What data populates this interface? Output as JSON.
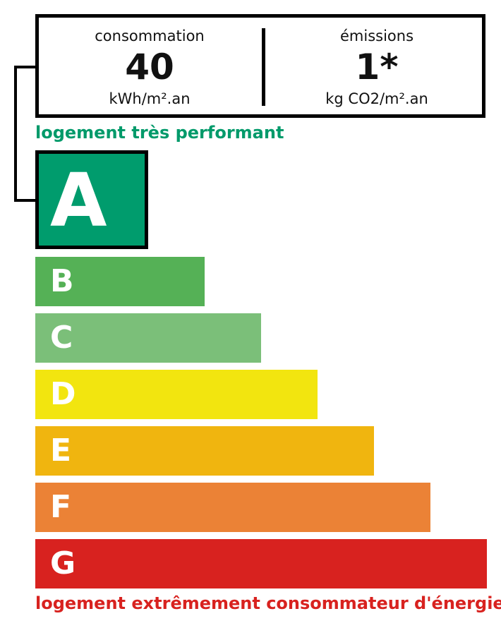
{
  "consumption": {
    "label": "consommation",
    "value": "40",
    "unit": "kWh/m².an"
  },
  "emissions": {
    "label": "émissions",
    "value": "1*",
    "unit": "kg CO2/m².an"
  },
  "top_text": "logement très performant",
  "bottom_text": "logement extrêmement consommateur d'énergie",
  "current_class": "A",
  "classes": [
    {
      "letter": "A",
      "color": "#009c6d"
    },
    {
      "letter": "B",
      "color": "#55b156"
    },
    {
      "letter": "C",
      "color": "#7bbf79"
    },
    {
      "letter": "D",
      "color": "#f2e50f"
    },
    {
      "letter": "E",
      "color": "#f0b50f"
    },
    {
      "letter": "F",
      "color": "#eb8236"
    },
    {
      "letter": "G",
      "color": "#d8221f"
    }
  ]
}
